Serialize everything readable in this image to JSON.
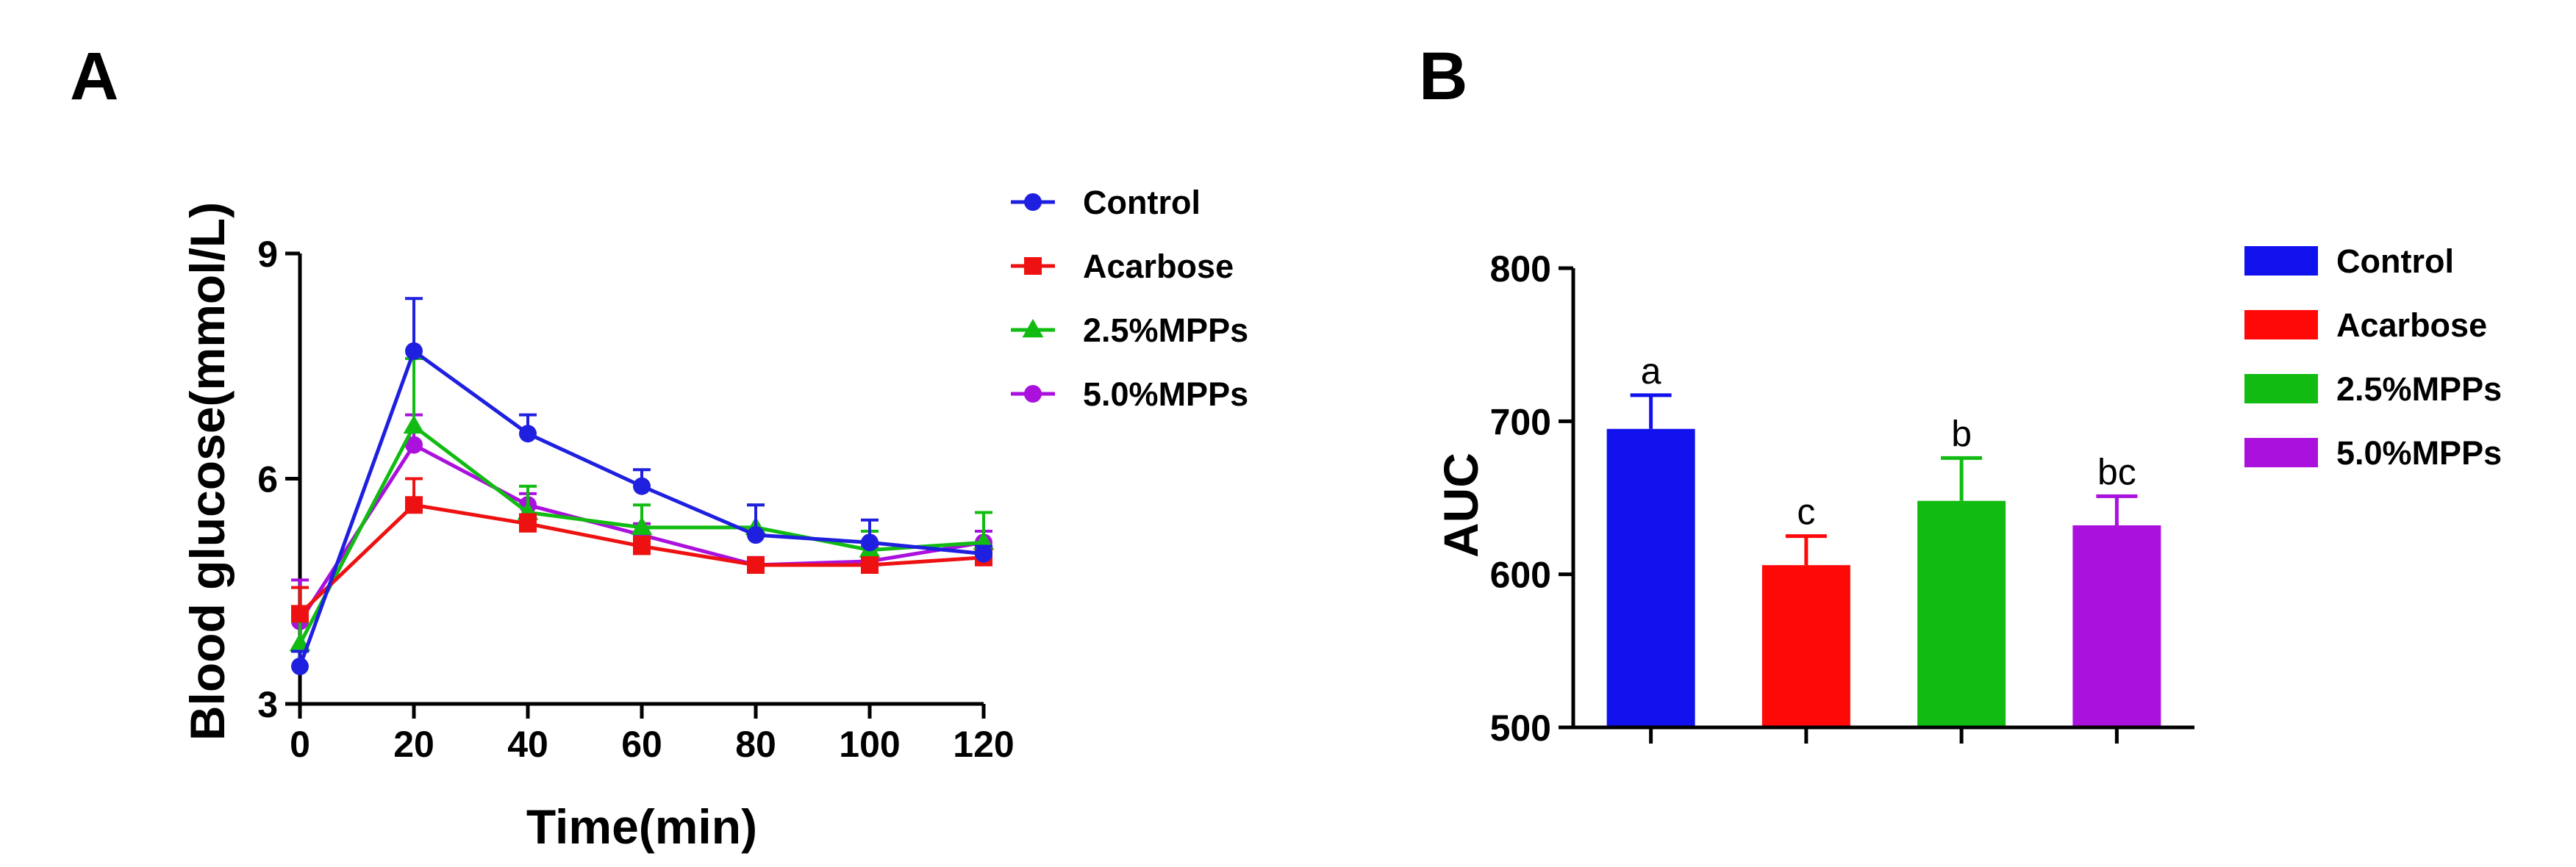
{
  "panels": {
    "a_label": "A",
    "b_label": "B"
  },
  "chart_data": [
    {
      "type": "line",
      "panel": "A",
      "xlabel": "Time(min)",
      "ylabel": "Blood glucose(mmol/L)",
      "x": [
        0,
        20,
        40,
        60,
        80,
        100,
        120
      ],
      "xlim": [
        0,
        120
      ],
      "ylim": [
        3,
        9
      ],
      "xticks": [
        0,
        20,
        40,
        60,
        80,
        100,
        120
      ],
      "yticks": [
        3,
        6,
        9
      ],
      "grid": false,
      "legend": "right",
      "series": [
        {
          "name": "Control",
          "color": "#1f1fe0",
          "marker": "circle",
          "values": [
            3.5,
            7.7,
            6.6,
            5.9,
            5.25,
            5.15,
            5.0
          ],
          "errors": [
            0.2,
            0.7,
            0.25,
            0.22,
            0.4,
            0.3,
            0.1
          ]
        },
        {
          "name": "Acarbose",
          "color": "#ee1111",
          "marker": "square",
          "values": [
            4.2,
            5.65,
            5.4,
            5.1,
            4.85,
            4.85,
            4.95
          ],
          "errors": [
            0.35,
            0.35,
            0.12,
            0.12,
            0.08,
            0.08,
            0.1
          ]
        },
        {
          "name": "2.5%MPPs",
          "color": "#11bb11",
          "marker": "triangle",
          "values": [
            3.8,
            6.7,
            5.55,
            5.35,
            5.35,
            5.05,
            5.15
          ],
          "errors": [
            0.3,
            0.9,
            0.35,
            0.3,
            0.3,
            0.25,
            0.4
          ]
        },
        {
          "name": "5.0%MPPs",
          "color": "#aa11dd",
          "marker": "circle",
          "values": [
            4.1,
            6.45,
            5.65,
            5.25,
            4.85,
            4.9,
            5.15
          ],
          "errors": [
            0.55,
            0.4,
            0.15,
            0.15,
            0.1,
            0.2,
            0.15
          ]
        }
      ]
    },
    {
      "type": "bar",
      "panel": "B",
      "ylabel": "AUC",
      "xlabel": "",
      "categories": [
        "Control",
        "Acarbose",
        "2.5%MPPs",
        "5.0%MPPs"
      ],
      "values": [
        695,
        606,
        648,
        632
      ],
      "errors": [
        22,
        19,
        28,
        19
      ],
      "annotations": [
        "a",
        "c",
        "b",
        "bc"
      ],
      "colors": [
        "#1111ee",
        "#ff0808",
        "#11bb11",
        "#aa11dd"
      ],
      "ylim": [
        500,
        800
      ],
      "yticks": [
        500,
        600,
        700,
        800
      ],
      "grid": false,
      "legend": "right"
    }
  ]
}
